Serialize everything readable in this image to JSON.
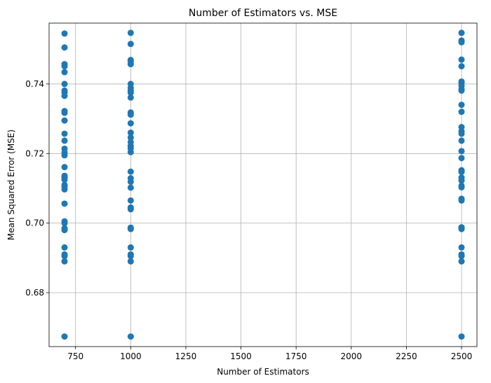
{
  "chart_data": {
    "type": "scatter",
    "title": "Number of Estimators vs. MSE",
    "xlabel": "Number of Estimators",
    "ylabel": "Mean Squared Error (MSE)",
    "xlim": [
      630,
      2570
    ],
    "ylim": [
      0.6645,
      0.7575
    ],
    "xticks": [
      750,
      1000,
      1250,
      1500,
      1750,
      2000,
      2250,
      2500
    ],
    "xtick_labels": [
      "750",
      "1000",
      "1250",
      "1500",
      "1750",
      "2000",
      "2250",
      "2500"
    ],
    "yticks": [
      0.68,
      0.7,
      0.72,
      0.74
    ],
    "ytick_labels": [
      "0.68",
      "0.70",
      "0.72",
      "0.74"
    ],
    "grid": true,
    "color": "#1f77b4",
    "series": [
      {
        "x": 700,
        "y": [
          0.7545,
          0.7505,
          0.7457,
          0.7451,
          0.7434,
          0.74,
          0.7381,
          0.7376,
          0.7366,
          0.7322,
          0.7317,
          0.7295,
          0.7257,
          0.7237,
          0.7214,
          0.7203,
          0.7195,
          0.7161,
          0.7136,
          0.7131,
          0.7125,
          0.711,
          0.7104,
          0.7097,
          0.7056,
          0.7005,
          0.7,
          0.6985,
          0.698,
          0.693,
          0.691,
          0.6905,
          0.689,
          0.6674
        ]
      },
      {
        "x": 1000,
        "y": [
          0.7547,
          0.7515,
          0.7469,
          0.7465,
          0.7457,
          0.74,
          0.7389,
          0.7381,
          0.7375,
          0.7361,
          0.7318,
          0.7312,
          0.7287,
          0.726,
          0.7246,
          0.7233,
          0.7222,
          0.7215,
          0.7204,
          0.7148,
          0.7129,
          0.7119,
          0.7102,
          0.7065,
          0.7045,
          0.704,
          0.6987,
          0.6983,
          0.693,
          0.691,
          0.6905,
          0.689,
          0.6674
        ]
      },
      {
        "x": 2500,
        "y": [
          0.7547,
          0.7525,
          0.752,
          0.747,
          0.7451,
          0.7407,
          0.7403,
          0.7395,
          0.7385,
          0.7381,
          0.734,
          0.732,
          0.7276,
          0.7264,
          0.7257,
          0.7237,
          0.7207,
          0.7187,
          0.7152,
          0.7147,
          0.7131,
          0.7122,
          0.7107,
          0.7103,
          0.707,
          0.7065,
          0.6988,
          0.6983,
          0.693,
          0.691,
          0.6905,
          0.689,
          0.6674
        ]
      }
    ]
  }
}
